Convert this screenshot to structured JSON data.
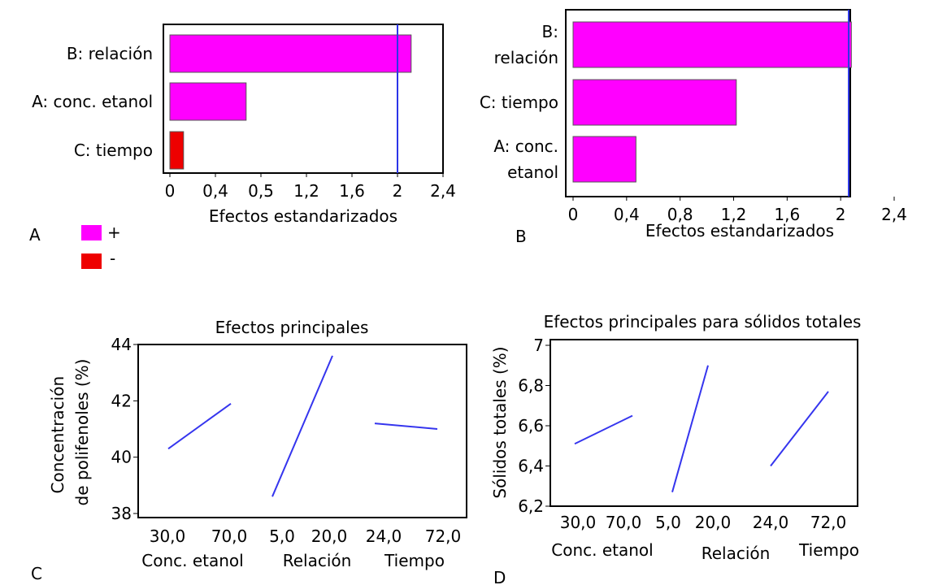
{
  "panels": {
    "A": {
      "letter": "A"
    },
    "B": {
      "letter": "B"
    },
    "C": {
      "letter": "C"
    },
    "D": {
      "letter": "D"
    }
  },
  "legend": {
    "items": [
      {
        "symbol": "+",
        "color": "#ff00ff"
      },
      {
        "symbol": "-",
        "color": "#ee0000"
      }
    ]
  },
  "colors": {
    "positive": "#ff00ff",
    "negative": "#ee0000",
    "reference": "#2b35e8",
    "line": "#3535ee"
  },
  "chart_data": [
    {
      "id": "A",
      "type": "bar",
      "orientation": "horizontal",
      "categories": [
        "B: relación",
        "A: conc. etanol",
        "C: tiempo"
      ],
      "values": [
        2.12,
        0.67,
        0.12
      ],
      "signs": [
        "+",
        "+",
        "-"
      ],
      "xlabel": "Efectos estandarizados",
      "tick_labels": [
        "0",
        "0,4",
        "0,5",
        "1,2",
        "1,6",
        "2",
        "2,4"
      ],
      "xlim": [
        0,
        2.4
      ],
      "reference_line": 2.0
    },
    {
      "id": "B",
      "type": "bar",
      "orientation": "horizontal",
      "categories": [
        "B: relación",
        "C: tiempo",
        "A: conc. etanol"
      ],
      "values": [
        2.08,
        1.22,
        0.47
      ],
      "signs": [
        "+",
        "+",
        "+"
      ],
      "xlabel": "Efectos estandarizados",
      "tick_labels": [
        "0",
        "0,4",
        "0,8",
        "1,2",
        "1,6",
        "2",
        "2,4"
      ],
      "xlim": [
        0,
        2.4
      ],
      "reference_line": 2.06
    },
    {
      "id": "C",
      "type": "line",
      "title": "Efectos principales",
      "ylabel": "Concentración de polifenoles (%)",
      "ylim": [
        38,
        44
      ],
      "yticks": [
        "38",
        "40",
        "42",
        "44"
      ],
      "factors": [
        {
          "name": "Conc. etanol",
          "levels": [
            "30,0",
            "70,0"
          ],
          "values": [
            40.3,
            41.9
          ]
        },
        {
          "name": "Relación",
          "levels": [
            "5,0",
            "20,0"
          ],
          "values": [
            38.6,
            43.6
          ]
        },
        {
          "name": "Tiempo",
          "levels": [
            "24,0",
            "72,0"
          ],
          "values": [
            41.2,
            41.0
          ]
        }
      ]
    },
    {
      "id": "D",
      "type": "line",
      "title": "Efectos principales para sólidos totales",
      "ylabel": "Sólidos totales (%)",
      "ylim": [
        6.2,
        7.0
      ],
      "yticks": [
        "6,2",
        "6,4",
        "6,6",
        "6,8",
        "7"
      ],
      "factors": [
        {
          "name": "Conc. etanol",
          "levels": [
            "30,0",
            "70,0"
          ],
          "values": [
            6.51,
            6.65
          ]
        },
        {
          "name": "Relación",
          "levels": [
            "5,0",
            "20,0"
          ],
          "values": [
            6.27,
            6.9
          ]
        },
        {
          "name": "Tiempo",
          "levels": [
            "24,0",
            "72,0"
          ],
          "values": [
            6.4,
            6.77
          ]
        }
      ]
    }
  ]
}
